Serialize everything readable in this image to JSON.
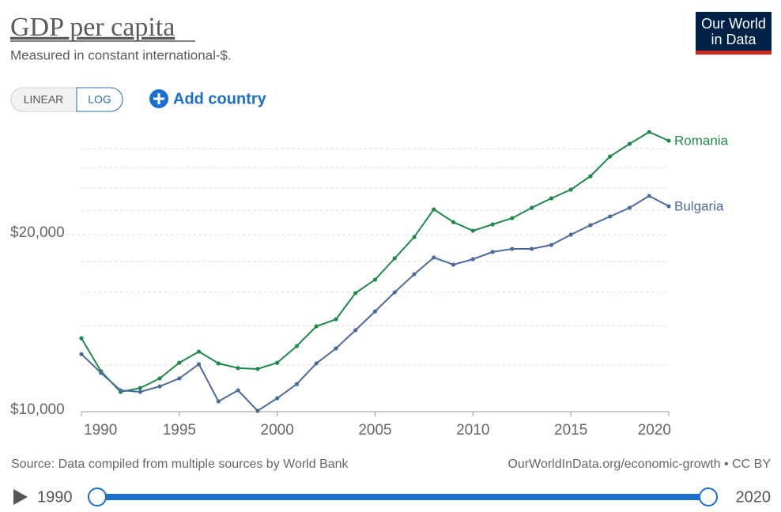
{
  "chart_data": {
    "type": "line",
    "title": "GDP per capita",
    "subtitle": "Measured in constant international-$.",
    "scale_buttons": [
      "LINEAR",
      "LOG"
    ],
    "add_button": "Add country",
    "logo": [
      "Our World",
      "in Data"
    ],
    "source": "Source: Data compiled from multiple sources by World Bank",
    "license": "OurWorldInData.org/economic-growth • CC BY",
    "timeline": {
      "start": "1990",
      "end": "2020"
    },
    "yscale": "log",
    "x": [
      1990,
      1991,
      1992,
      1993,
      1994,
      1995,
      1996,
      1997,
      1998,
      1999,
      2000,
      2001,
      2002,
      2003,
      2004,
      2005,
      2006,
      2007,
      2008,
      2009,
      2010,
      2011,
      2012,
      2013,
      2014,
      2015,
      2016,
      2017,
      2018,
      2019,
      2020
    ],
    "xlim": [
      1990,
      2020
    ],
    "xticks": [
      1990,
      1995,
      2000,
      2005,
      2010,
      2015,
      2020
    ],
    "ylim": [
      10000,
      30000
    ],
    "yticks": [
      {
        "value": 10000,
        "label": "$10,000"
      },
      {
        "value": 20000,
        "label": "$20,000"
      }
    ],
    "yticks_minor": [
      12000,
      14000,
      16000,
      18000,
      22000,
      24000,
      26000,
      28000
    ],
    "grid": true,
    "series": [
      {
        "name": "Romania",
        "color": "#1e8a49",
        "values": [
          13330,
          11710,
          10805,
          10970,
          11390,
          12110,
          12650,
          12080,
          11860,
          11820,
          12110,
          12930,
          13970,
          14360,
          15910,
          16770,
          18230,
          19820,
          22080,
          21010,
          20310,
          20820,
          21340,
          22220,
          23060,
          23860,
          25150,
          27170,
          28550,
          29900,
          28900
        ]
      },
      {
        "name": "Bulgaria",
        "color": "#4c6a9c",
        "values": [
          12530,
          11640,
          10870,
          10805,
          11040,
          11390,
          12040,
          10410,
          10870,
          10030,
          10540,
          11140,
          12080,
          12810,
          13760,
          14810,
          15960,
          17130,
          18290,
          17780,
          18170,
          18690,
          18920,
          18920,
          19210,
          20000,
          20760,
          21480,
          22220,
          23280,
          22360
        ]
      }
    ]
  }
}
